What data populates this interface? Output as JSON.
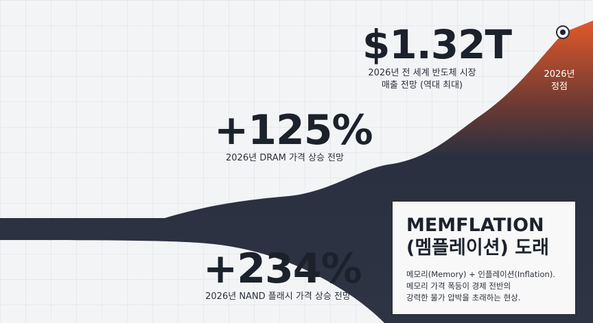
{
  "stats": [
    {
      "value": "$1.32T",
      "caption": [
        "2026년 전 세계 반도체 시장",
        "매출 전망 (역대 최대)"
      ]
    },
    {
      "value": "+125%",
      "caption": [
        "2026년 DRAM 가격 상승 전망"
      ]
    },
    {
      "value": "+234%",
      "caption": [
        "2026년 NAND 플래시 가격 상승 전망"
      ]
    }
  ],
  "peak": [
    "2026년",
    "정점"
  ],
  "callout": {
    "title": [
      "MEMFLATION",
      "(멤플레이션) 도래"
    ],
    "lines": [
      "메모리(Memory) + 인플레이션(Inflation).",
      "메모리 가격 폭등이 경제 전반의",
      "강력한 물가 압박을 초래하는 현상."
    ]
  }
}
